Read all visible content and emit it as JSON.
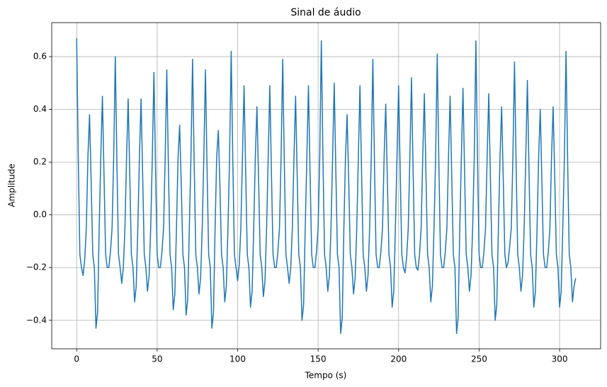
{
  "chart_data": {
    "type": "line",
    "title": "Sinal de áudio",
    "x_label": "Tempo (s)",
    "y_label": "Amplitude",
    "color": "#1f77b4",
    "grid": true,
    "xlim": [
      -15.5,
      325.5
    ],
    "ylim": [
      -0.508,
      0.729
    ],
    "xticks": [
      0,
      50,
      100,
      150,
      200,
      250,
      300
    ],
    "yticks": [
      {
        "value": -0.4,
        "label": "−0.4"
      },
      {
        "value": -0.2,
        "label": "−0.2"
      },
      {
        "value": 0,
        "label": "0.0"
      },
      0.2,
      0.4,
      0.6
    ],
    "x": [
      0,
      1,
      2,
      3,
      4,
      5,
      6,
      7,
      8,
      9,
      10,
      11,
      12,
      13,
      14,
      15,
      16,
      17,
      18,
      19,
      20,
      21,
      22,
      23,
      24,
      25,
      26,
      27,
      28,
      29,
      30,
      31,
      32,
      33,
      34,
      35,
      36,
      37,
      38,
      39,
      40,
      41,
      42,
      43,
      44,
      45,
      46,
      47,
      48,
      49,
      50,
      51,
      52,
      53,
      54,
      55,
      56,
      57,
      58,
      59,
      60,
      61,
      62,
      63,
      64,
      65,
      66,
      67,
      68,
      69,
      70,
      71,
      72,
      73,
      74,
      75,
      76,
      77,
      78,
      79,
      80,
      81,
      82,
      83,
      84,
      85,
      86,
      87,
      88,
      89,
      90,
      91,
      92,
      93,
      94,
      95,
      96,
      97,
      98,
      99,
      100,
      101,
      102,
      103,
      104,
      105,
      106,
      107,
      108,
      109,
      110,
      111,
      112,
      113,
      114,
      115,
      116,
      117,
      118,
      119,
      120,
      121,
      122,
      123,
      124,
      125,
      126,
      127,
      128,
      129,
      130,
      131,
      132,
      133,
      134,
      135,
      136,
      137,
      138,
      139,
      140,
      141,
      142,
      143,
      144,
      145,
      146,
      147,
      148,
      149,
      150,
      151,
      152,
      153,
      154,
      155,
      156,
      157,
      158,
      159,
      160,
      161,
      162,
      163,
      164,
      165,
      166,
      167,
      168,
      169,
      170,
      171,
      172,
      173,
      174,
      175,
      176,
      177,
      178,
      179,
      180,
      181,
      182,
      183,
      184,
      185,
      186,
      187,
      188,
      189,
      190,
      191,
      192,
      193,
      194,
      195,
      196,
      197,
      198,
      199,
      200,
      201,
      202,
      203,
      204,
      205,
      206,
      207,
      208,
      209,
      210,
      211,
      212,
      213,
      214,
      215,
      216,
      217,
      218,
      219,
      220,
      221,
      222,
      223,
      224,
      225,
      226,
      227,
      228,
      229,
      230,
      231,
      232,
      233,
      234,
      235,
      236,
      237,
      238,
      239,
      240,
      241,
      242,
      243,
      244,
      245,
      246,
      247,
      248,
      249,
      250,
      251,
      252,
      253,
      254,
      255,
      256,
      257,
      258,
      259,
      260,
      261,
      262,
      263,
      264,
      265,
      266,
      267,
      268,
      269,
      270,
      271,
      272,
      273,
      274,
      275,
      276,
      277,
      278,
      279,
      280,
      281,
      282,
      283,
      284,
      285,
      286,
      287,
      288,
      289,
      290,
      291,
      292,
      293,
      294,
      295,
      296,
      297,
      298,
      299,
      300,
      301,
      302,
      303,
      304,
      305,
      306,
      307,
      308,
      309,
      310
    ],
    "values": [
      0.67,
      0.22,
      -0.15,
      -0.2,
      -0.23,
      -0.17,
      -0.05,
      0.22,
      0.38,
      0.13,
      -0.15,
      -0.2,
      -0.43,
      -0.37,
      -0.05,
      0.22,
      0.45,
      0.15,
      -0.15,
      -0.2,
      -0.2,
      -0.14,
      -0.05,
      0.22,
      0.6,
      0.2,
      -0.15,
      -0.2,
      -0.26,
      -0.2,
      -0.05,
      0.22,
      0.44,
      0.15,
      -0.15,
      -0.2,
      -0.33,
      -0.27,
      -0.05,
      0.22,
      0.44,
      0.15,
      -0.15,
      -0.2,
      -0.29,
      -0.23,
      -0.05,
      0.22,
      0.54,
      0.18,
      -0.15,
      -0.2,
      -0.2,
      -0.14,
      -0.05,
      0.22,
      0.55,
      0.18,
      -0.15,
      -0.2,
      -0.36,
      -0.3,
      -0.05,
      0.22,
      0.34,
      0.11,
      -0.15,
      -0.2,
      -0.38,
      -0.32,
      -0.05,
      0.22,
      0.59,
      0.2,
      -0.15,
      -0.2,
      -0.3,
      -0.24,
      -0.05,
      0.22,
      0.55,
      0.18,
      -0.15,
      -0.2,
      -0.43,
      -0.37,
      -0.05,
      0.22,
      0.32,
      0.11,
      -0.15,
      -0.2,
      -0.33,
      -0.27,
      -0.05,
      0.22,
      0.62,
      0.21,
      -0.15,
      -0.2,
      -0.25,
      -0.19,
      -0.05,
      0.22,
      0.49,
      0.16,
      -0.15,
      -0.2,
      -0.35,
      -0.29,
      -0.05,
      0.22,
      0.41,
      0.14,
      -0.15,
      -0.2,
      -0.31,
      -0.25,
      -0.05,
      0.22,
      0.49,
      0.16,
      -0.15,
      -0.2,
      -0.2,
      -0.14,
      -0.05,
      0.22,
      0.59,
      0.2,
      -0.15,
      -0.2,
      -0.26,
      -0.2,
      -0.05,
      0.22,
      0.45,
      0.15,
      -0.15,
      -0.2,
      -0.4,
      -0.34,
      -0.05,
      0.22,
      0.49,
      0.16,
      -0.15,
      -0.2,
      -0.2,
      -0.14,
      -0.05,
      0.22,
      0.66,
      0.22,
      -0.15,
      -0.2,
      -0.29,
      -0.23,
      -0.05,
      0.22,
      0.5,
      0.17,
      -0.15,
      -0.2,
      -0.45,
      -0.39,
      -0.05,
      0.22,
      0.38,
      0.13,
      -0.15,
      -0.2,
      -0.3,
      -0.24,
      -0.05,
      0.22,
      0.49,
      0.16,
      -0.15,
      -0.2,
      -0.29,
      -0.23,
      -0.05,
      0.22,
      0.59,
      0.2,
      -0.15,
      -0.2,
      -0.2,
      -0.14,
      -0.05,
      0.22,
      0.42,
      0.14,
      -0.15,
      -0.2,
      -0.35,
      -0.29,
      -0.05,
      0.22,
      0.49,
      0.16,
      -0.15,
      -0.2,
      -0.22,
      -0.16,
      -0.05,
      0.22,
      0.52,
      0.17,
      -0.15,
      -0.2,
      -0.21,
      -0.15,
      -0.05,
      0.22,
      0.46,
      0.15,
      -0.15,
      -0.2,
      -0.33,
      -0.27,
      -0.05,
      0.22,
      0.61,
      0.2,
      -0.15,
      -0.2,
      -0.2,
      -0.14,
      -0.05,
      0.22,
      0.45,
      0.15,
      -0.15,
      -0.2,
      -0.45,
      -0.39,
      -0.05,
      0.22,
      0.48,
      0.16,
      -0.15,
      -0.2,
      -0.29,
      -0.23,
      -0.05,
      0.22,
      0.66,
      0.22,
      -0.15,
      -0.2,
      -0.2,
      -0.14,
      -0.05,
      0.22,
      0.46,
      0.15,
      -0.15,
      -0.2,
      -0.4,
      -0.34,
      -0.05,
      0.22,
      0.41,
      0.14,
      -0.15,
      -0.2,
      -0.18,
      -0.12,
      -0.05,
      0.22,
      0.58,
      0.19,
      -0.15,
      -0.2,
      -0.29,
      -0.23,
      -0.05,
      0.22,
      0.51,
      0.17,
      -0.15,
      -0.2,
      -0.35,
      -0.29,
      -0.05,
      0.22,
      0.4,
      0.13,
      -0.15,
      -0.2,
      -0.2,
      -0.14,
      -0.05,
      0.22,
      0.41,
      0.14,
      -0.15,
      -0.2,
      -0.35,
      -0.29,
      -0.05,
      0.22,
      0.62,
      0.21,
      -0.15,
      -0.2,
      -0.33,
      -0.27,
      -0.24
    ]
  }
}
